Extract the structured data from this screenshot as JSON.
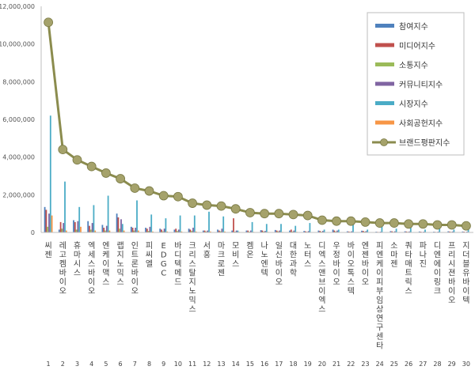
{
  "chart_data": {
    "type": "bar",
    "ylim": [
      0,
      12000000
    ],
    "yticks": [
      "0",
      "2,000,000",
      "4,000,000",
      "6,000,000",
      "8,000,000",
      "10,000,000",
      "12,000,000"
    ],
    "grid": false,
    "legend_position": "top-right",
    "categories": [
      "씨젠",
      "레고켐바이오",
      "휴마시스",
      "엑세스바이오",
      "엔케이맥스",
      "랩지노믹스",
      "인트론바이오",
      "피씨엘",
      "EDGC",
      "바디텍메드",
      "크리스탈지노믹스",
      "서흥",
      "마크로젠",
      "모비스",
      "켐온",
      "나노엔텍",
      "일신바이오",
      "대한과학",
      "노터스",
      "디엑스앤브이엑스",
      "우정바이오",
      "바이오톡스텍",
      "엔젠바이오",
      "피엔케이피부임상연구센타",
      "소마젠",
      "쿼타매트릭스",
      "파나진",
      "디엔에이링크",
      "프리시젼바이오",
      "지더블유바이텍"
    ],
    "ranks": [
      "1",
      "2",
      "3",
      "4",
      "5",
      "6",
      "7",
      "8",
      "9",
      "10",
      "11",
      "12",
      "13",
      "14",
      "15",
      "16",
      "17",
      "18",
      "19",
      "20",
      "21",
      "22",
      "23",
      "24",
      "25",
      "26",
      "27",
      "28",
      "29",
      "30"
    ],
    "series": [
      {
        "name": "참여지수",
        "kind": "bar",
        "color": "#4f81bd",
        "values": [
          1350000,
          150000,
          650000,
          600000,
          400000,
          1000000,
          300000,
          250000,
          200000,
          150000,
          200000,
          100000,
          150000,
          100000,
          100000,
          120000,
          130000,
          100000,
          80000,
          100000,
          150000,
          60000,
          90000,
          40000,
          70000,
          60000,
          50000,
          40000,
          60000,
          50000
        ]
      },
      {
        "name": "미디어지수",
        "kind": "bar",
        "color": "#c0504d",
        "values": [
          1200000,
          550000,
          550000,
          350000,
          250000,
          800000,
          250000,
          200000,
          150000,
          200000,
          150000,
          100000,
          100000,
          750000,
          100000,
          100000,
          100000,
          150000,
          60000,
          80000,
          100000,
          50000,
          80000,
          30000,
          60000,
          50000,
          40000,
          30000,
          50000,
          40000
        ]
      },
      {
        "name": "소통지수",
        "kind": "bar",
        "color": "#9bbb59",
        "values": [
          300000,
          200000,
          150000,
          150000,
          100000,
          200000,
          100000,
          80000,
          60000,
          80000,
          80000,
          50000,
          60000,
          40000,
          40000,
          50000,
          60000,
          50000,
          30000,
          40000,
          50000,
          30000,
          40000,
          20000,
          30000,
          30000,
          20000,
          20000,
          30000,
          20000
        ]
      },
      {
        "name": "커뮤니티지수",
        "kind": "bar",
        "color": "#8064a2",
        "values": [
          1000000,
          500000,
          600000,
          500000,
          350000,
          700000,
          250000,
          300000,
          200000,
          150000,
          250000,
          100000,
          200000,
          100000,
          100000,
          80000,
          100000,
          100000,
          70000,
          80000,
          100000,
          60000,
          70000,
          40000,
          60000,
          50000,
          40000,
          40000,
          50000,
          40000
        ]
      },
      {
        "name": "시장지수",
        "kind": "bar",
        "color": "#4bacc6",
        "values": [
          6200000,
          2700000,
          1350000,
          1450000,
          1950000,
          450000,
          1700000,
          950000,
          750000,
          900000,
          900000,
          1100000,
          850000,
          100000,
          550000,
          450000,
          450000,
          350000,
          500000,
          150000,
          150000,
          450000,
          150000,
          350000,
          200000,
          250000,
          150000,
          250000,
          150000,
          150000
        ]
      },
      {
        "name": "사회공헌지수",
        "kind": "bar",
        "color": "#f79646",
        "values": [
          900000,
          100000,
          300000,
          100000,
          100000,
          100000,
          100000,
          50000,
          50000,
          50000,
          50000,
          50000,
          50000,
          30000,
          30000,
          30000,
          30000,
          30000,
          20000,
          20000,
          20000,
          20000,
          20000,
          10000,
          20000,
          10000,
          10000,
          10000,
          10000,
          10000
        ]
      },
      {
        "name": "브랜드평판지수",
        "kind": "line",
        "color": "#8b8c4e",
        "marker_color": "#a5a26b",
        "values": [
          11150000,
          4400000,
          3850000,
          3500000,
          3150000,
          2850000,
          2350000,
          2200000,
          1950000,
          1900000,
          1550000,
          1450000,
          1400000,
          1250000,
          1050000,
          1000000,
          1000000,
          950000,
          900000,
          650000,
          600000,
          600000,
          550000,
          500000,
          500000,
          450000,
          450000,
          400000,
          400000,
          350000
        ]
      }
    ]
  }
}
